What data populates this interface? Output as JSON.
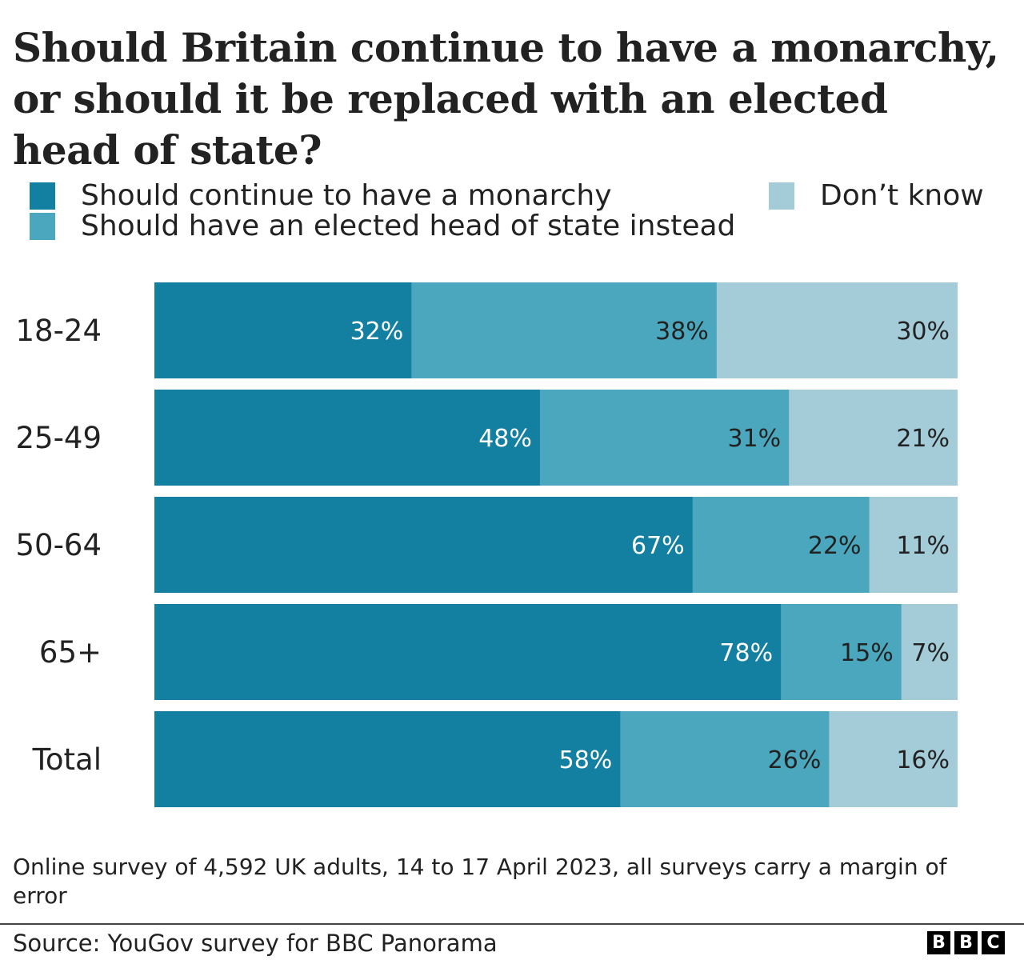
{
  "chart_data": {
    "type": "bar",
    "orientation": "horizontal",
    "stacked": true,
    "title": "Should Britain continue to have a monarchy, or should it be replaced with an elected head of state?",
    "categories": [
      "18-24",
      "25-49",
      "50-64",
      "65+",
      "Total"
    ],
    "series": [
      {
        "name": "Should continue to have a monarchy",
        "color": "#1380a1",
        "label_color": "#ffffff",
        "values": [
          32,
          48,
          67,
          78,
          58
        ]
      },
      {
        "name": "Should have an elected head of state instead",
        "color": "#4ba7bd",
        "label_color": "#222222",
        "values": [
          38,
          31,
          22,
          15,
          26
        ]
      },
      {
        "name": "Don’t know",
        "color": "#a3cbd8",
        "label_color": "#222222",
        "values": [
          30,
          21,
          11,
          7,
          16
        ]
      }
    ],
    "value_suffix": "%",
    "xlim": [
      0,
      100
    ],
    "grid": false,
    "legend_position": "top"
  },
  "note": "Online survey of 4,592 UK adults, 14 to 17 April 2023, all surveys carry a margin of error",
  "source": "Source: YouGov survey for BBC Panorama",
  "logo": [
    "B",
    "B",
    "C"
  ]
}
